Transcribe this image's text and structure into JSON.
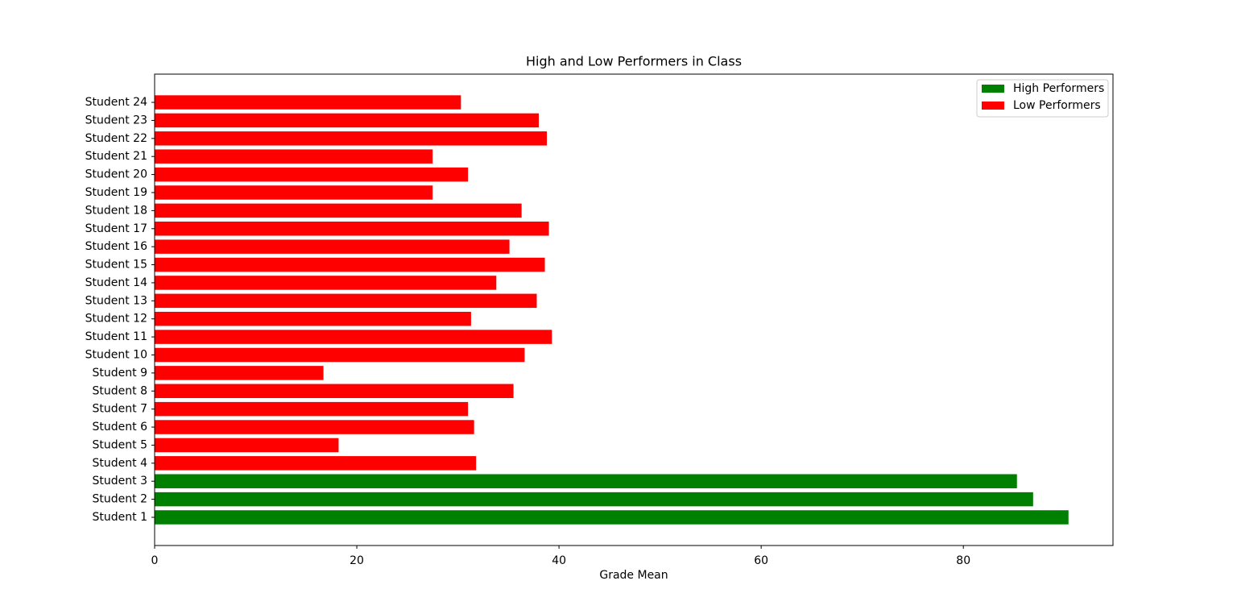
{
  "chart_data": {
    "type": "barh",
    "title": "High and Low Performers in Class",
    "xlabel": "Grade Mean",
    "categories": [
      "Student 1",
      "Student 2",
      "Student 3",
      "Student 4",
      "Student 5",
      "Student 6",
      "Student 7",
      "Student 8",
      "Student 9",
      "Student 10",
      "Student 11",
      "Student 12",
      "Student 13",
      "Student 14",
      "Student 15",
      "Student 16",
      "Student 17",
      "Student 18",
      "Student 19",
      "Student 20",
      "Student 21",
      "Student 22",
      "Student 23",
      "Student 24"
    ],
    "series": [
      {
        "name": "High Performers",
        "color": "#008000",
        "values": [
          90.4,
          86.9,
          85.3,
          null,
          null,
          null,
          null,
          null,
          null,
          null,
          null,
          null,
          null,
          null,
          null,
          null,
          null,
          null,
          null,
          null,
          null,
          null,
          null,
          null
        ]
      },
      {
        "name": "Low Performers",
        "color": "#ff0000",
        "values": [
          null,
          null,
          null,
          31.8,
          18.2,
          31.6,
          31.0,
          35.5,
          16.7,
          36.6,
          39.3,
          31.3,
          37.8,
          33.8,
          38.6,
          35.1,
          39.0,
          36.3,
          27.5,
          31.0,
          27.5,
          38.8,
          38.0,
          30.3
        ]
      }
    ],
    "xlim": [
      0,
      94.8
    ],
    "xticks": [
      0,
      20,
      40,
      60,
      80
    ],
    "legend": "upper right"
  }
}
